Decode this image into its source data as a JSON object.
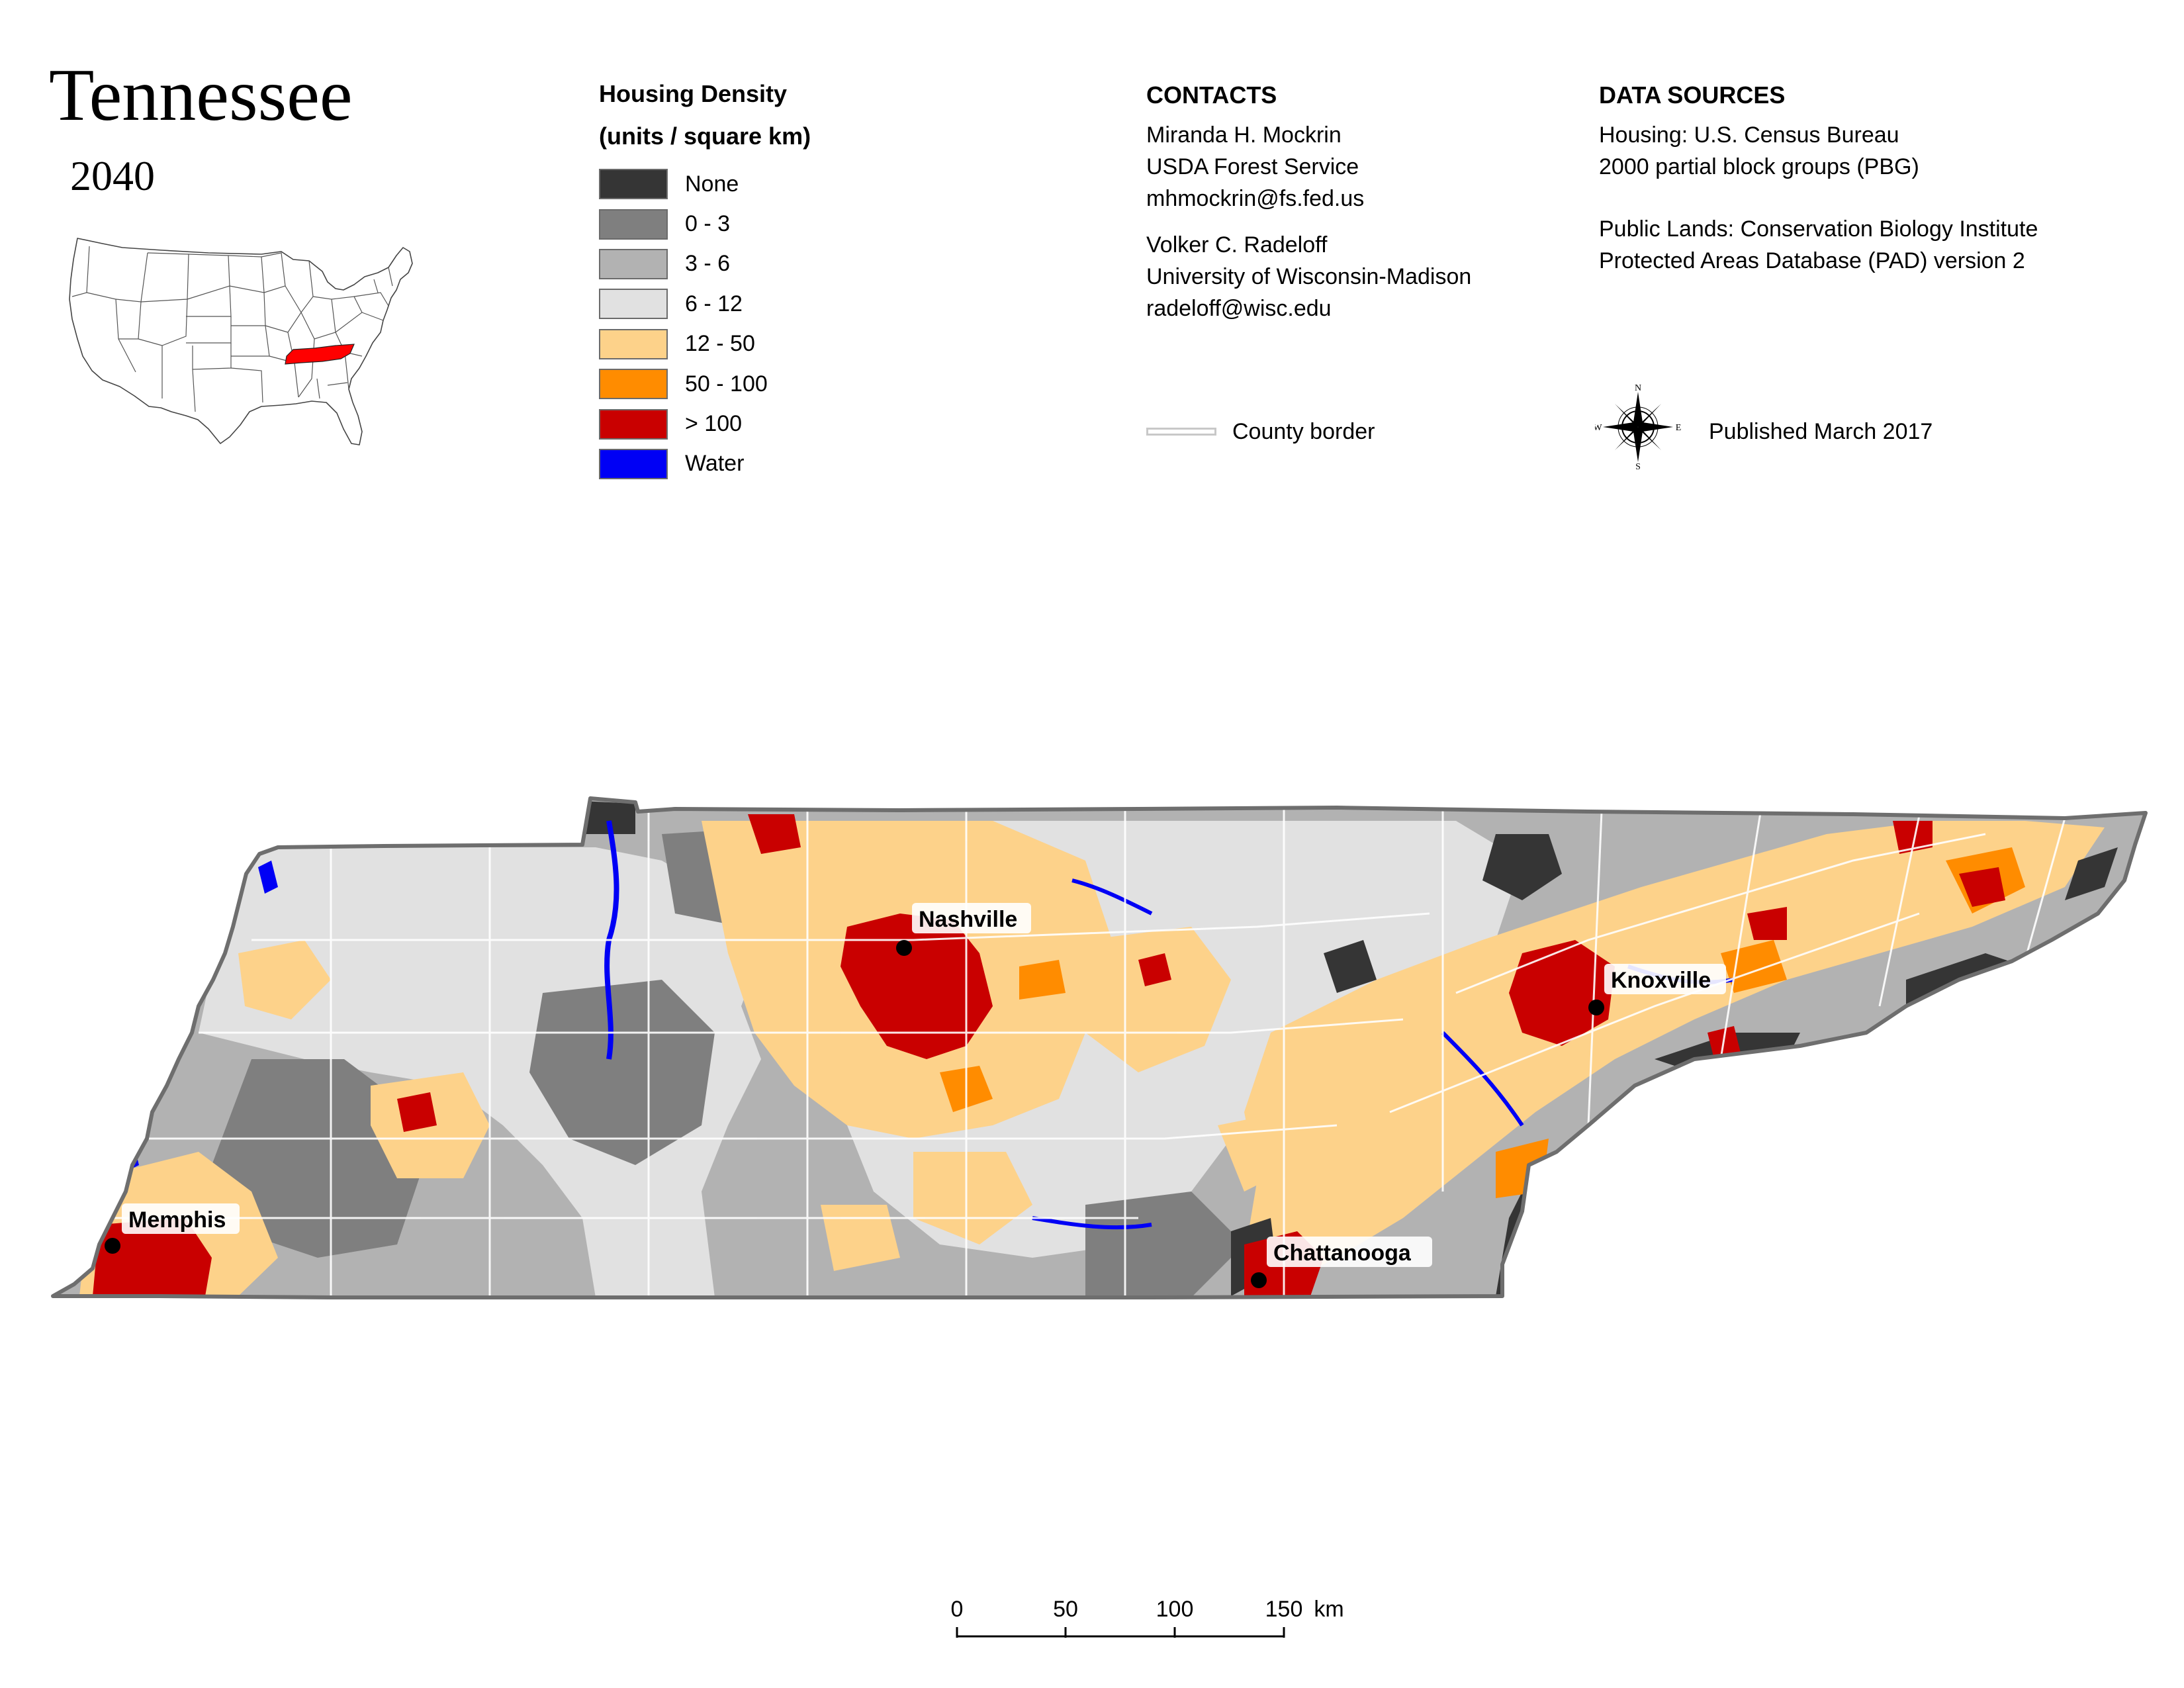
{
  "title": "Tennessee",
  "year": "2040",
  "legend": {
    "heading_line1": "Housing Density",
    "heading_line2": "(units / square km)",
    "items": [
      {
        "label": "None",
        "color": "#353535"
      },
      {
        "label": "0 - 3",
        "color": "#7f7f7f"
      },
      {
        "label": "3 - 6",
        "color": "#b2b2b2"
      },
      {
        "label": "6 - 12",
        "color": "#e1e1e1"
      },
      {
        "label": "12 - 50",
        "color": "#fdd28a"
      },
      {
        "label": "50 - 100",
        "color": "#ff8c00"
      },
      {
        "label": "> 100",
        "color": "#c90000"
      },
      {
        "label": "Water",
        "color": "#0000f5"
      }
    ]
  },
  "contacts": {
    "heading": "CONTACTS",
    "person1": {
      "name": "Miranda H. Mockrin",
      "org": "USDA Forest Service",
      "email": "mhmockrin@fs.fed.us"
    },
    "person2": {
      "name": "Volker C. Radeloff",
      "org": "University of Wisconsin-Madison",
      "email": "radeloff@wisc.edu"
    },
    "county_border_label": "County border"
  },
  "sources": {
    "heading": "DATA SOURCES",
    "housing_line1": "Housing: U.S. Census Bureau",
    "housing_line2": "2000 partial block groups (PBG)",
    "lands_line1": "Public Lands: Conservation Biology Institute",
    "lands_line2": "Protected Areas Database (PAD) version 2",
    "published": "Published March 2017"
  },
  "compass": {
    "n": "N",
    "s": "S",
    "e": "E",
    "w": "W"
  },
  "map": {
    "highlight_state_color": "#ff0000",
    "cities": [
      {
        "name": "Memphis"
      },
      {
        "name": "Nashville"
      },
      {
        "name": "Knoxville"
      },
      {
        "name": "Chattanooga"
      }
    ]
  },
  "scale": {
    "ticks": [
      "0",
      "50",
      "100",
      "150"
    ],
    "unit": "km"
  }
}
